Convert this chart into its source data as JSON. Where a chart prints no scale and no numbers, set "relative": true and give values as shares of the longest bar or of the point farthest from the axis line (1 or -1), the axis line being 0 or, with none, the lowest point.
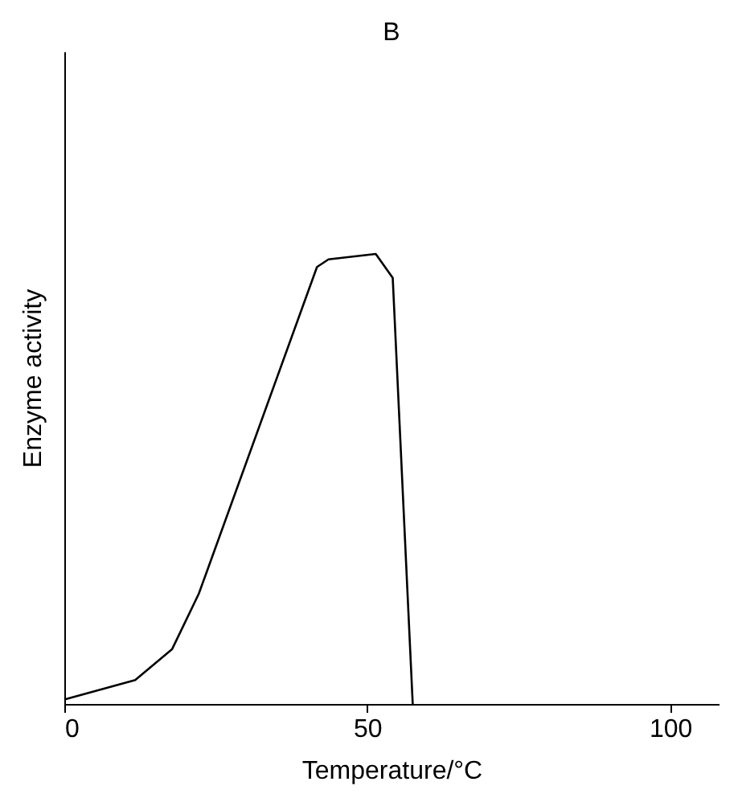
{
  "chart_data": {
    "type": "line",
    "title": "B",
    "xlabel": "Temperature/°C",
    "ylabel": "Enzyme activity",
    "x": [
      0,
      11.7,
      17.8,
      22.2,
      41.7,
      43.6,
      51.4,
      54.2,
      57.5
    ],
    "values": [
      0.01,
      0.053,
      0.122,
      0.245,
      0.971,
      0.988,
      1,
      0.947,
      0
    ],
    "color": "#000000",
    "relative": true,
    "xlim": [
      0,
      108
    ],
    "xticks": [
      0,
      50,
      100
    ],
    "grid": false,
    "marker": "none",
    "line_style": "solid"
  }
}
